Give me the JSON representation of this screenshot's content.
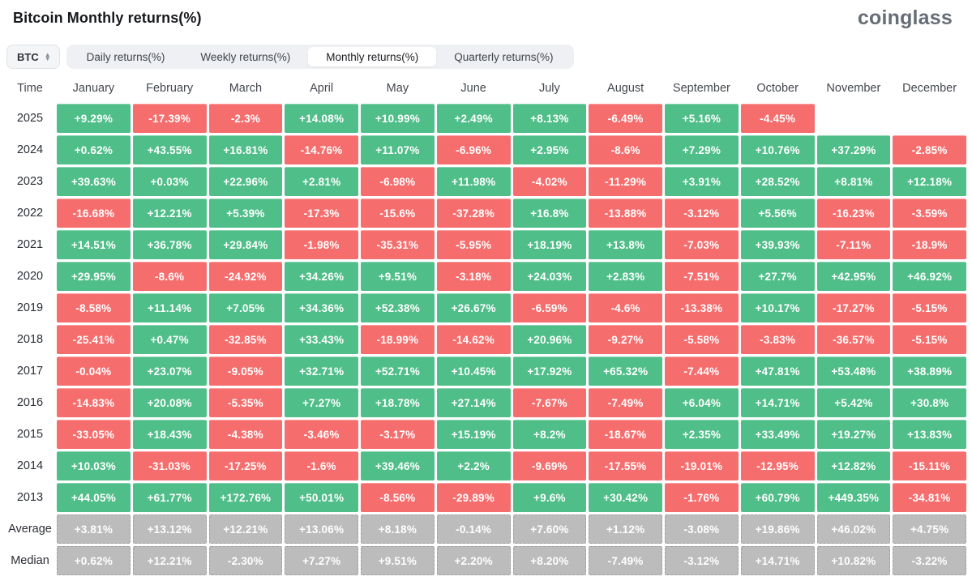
{
  "header": {
    "title": "Bitcoin Monthly returns(%)",
    "logo": "coinglass"
  },
  "toolbar": {
    "symbol_select": {
      "value": "BTC"
    },
    "tabs": [
      {
        "label": "Daily returns(%)",
        "active": false
      },
      {
        "label": "Weekly returns(%)",
        "active": false
      },
      {
        "label": "Monthly returns(%)",
        "active": true
      },
      {
        "label": "Quarterly returns(%)",
        "active": false
      }
    ]
  },
  "colors": {
    "positive": "#4fbe89",
    "negative": "#f66d6d",
    "aggregate": "#bcbcbc"
  },
  "chart_data": {
    "type": "heatmap",
    "title": "Bitcoin Monthly returns(%)",
    "time_header": "Time",
    "months": [
      "January",
      "February",
      "March",
      "April",
      "May",
      "June",
      "July",
      "August",
      "September",
      "October",
      "November",
      "December"
    ],
    "rows": [
      {
        "label": "2025",
        "type": "year",
        "values": [
          "+9.29%",
          "-17.39%",
          "-2.3%",
          "+14.08%",
          "+10.99%",
          "+2.49%",
          "+8.13%",
          "-6.49%",
          "+5.16%",
          "-4.45%",
          null,
          null
        ]
      },
      {
        "label": "2024",
        "type": "year",
        "values": [
          "+0.62%",
          "+43.55%",
          "+16.81%",
          "-14.76%",
          "+11.07%",
          "-6.96%",
          "+2.95%",
          "-8.6%",
          "+7.29%",
          "+10.76%",
          "+37.29%",
          "-2.85%"
        ]
      },
      {
        "label": "2023",
        "type": "year",
        "values": [
          "+39.63%",
          "+0.03%",
          "+22.96%",
          "+2.81%",
          "-6.98%",
          "+11.98%",
          "-4.02%",
          "-11.29%",
          "+3.91%",
          "+28.52%",
          "+8.81%",
          "+12.18%"
        ]
      },
      {
        "label": "2022",
        "type": "year",
        "values": [
          "-16.68%",
          "+12.21%",
          "+5.39%",
          "-17.3%",
          "-15.6%",
          "-37.28%",
          "+16.8%",
          "-13.88%",
          "-3.12%",
          "+5.56%",
          "-16.23%",
          "-3.59%"
        ]
      },
      {
        "label": "2021",
        "type": "year",
        "values": [
          "+14.51%",
          "+36.78%",
          "+29.84%",
          "-1.98%",
          "-35.31%",
          "-5.95%",
          "+18.19%",
          "+13.8%",
          "-7.03%",
          "+39.93%",
          "-7.11%",
          "-18.9%"
        ]
      },
      {
        "label": "2020",
        "type": "year",
        "values": [
          "+29.95%",
          "-8.6%",
          "-24.92%",
          "+34.26%",
          "+9.51%",
          "-3.18%",
          "+24.03%",
          "+2.83%",
          "-7.51%",
          "+27.7%",
          "+42.95%",
          "+46.92%"
        ]
      },
      {
        "label": "2019",
        "type": "year",
        "values": [
          "-8.58%",
          "+11.14%",
          "+7.05%",
          "+34.36%",
          "+52.38%",
          "+26.67%",
          "-6.59%",
          "-4.6%",
          "-13.38%",
          "+10.17%",
          "-17.27%",
          "-5.15%"
        ]
      },
      {
        "label": "2018",
        "type": "year",
        "values": [
          "-25.41%",
          "+0.47%",
          "-32.85%",
          "+33.43%",
          "-18.99%",
          "-14.62%",
          "+20.96%",
          "-9.27%",
          "-5.58%",
          "-3.83%",
          "-36.57%",
          "-5.15%"
        ]
      },
      {
        "label": "2017",
        "type": "year",
        "values": [
          "-0.04%",
          "+23.07%",
          "-9.05%",
          "+32.71%",
          "+52.71%",
          "+10.45%",
          "+17.92%",
          "+65.32%",
          "-7.44%",
          "+47.81%",
          "+53.48%",
          "+38.89%"
        ]
      },
      {
        "label": "2016",
        "type": "year",
        "values": [
          "-14.83%",
          "+20.08%",
          "-5.35%",
          "+7.27%",
          "+18.78%",
          "+27.14%",
          "-7.67%",
          "-7.49%",
          "+6.04%",
          "+14.71%",
          "+5.42%",
          "+30.8%"
        ]
      },
      {
        "label": "2015",
        "type": "year",
        "values": [
          "-33.05%",
          "+18.43%",
          "-4.38%",
          "-3.46%",
          "-3.17%",
          "+15.19%",
          "+8.2%",
          "-18.67%",
          "+2.35%",
          "+33.49%",
          "+19.27%",
          "+13.83%"
        ]
      },
      {
        "label": "2014",
        "type": "year",
        "values": [
          "+10.03%",
          "-31.03%",
          "-17.25%",
          "-1.6%",
          "+39.46%",
          "+2.2%",
          "-9.69%",
          "-17.55%",
          "-19.01%",
          "-12.95%",
          "+12.82%",
          "-15.11%"
        ]
      },
      {
        "label": "2013",
        "type": "year",
        "values": [
          "+44.05%",
          "+61.77%",
          "+172.76%",
          "+50.01%",
          "-8.56%",
          "-29.89%",
          "+9.6%",
          "+30.42%",
          "-1.76%",
          "+60.79%",
          "+449.35%",
          "-34.81%"
        ]
      },
      {
        "label": "Average",
        "type": "aggregate",
        "values": [
          "+3.81%",
          "+13.12%",
          "+12.21%",
          "+13.06%",
          "+8.18%",
          "-0.14%",
          "+7.60%",
          "+1.12%",
          "-3.08%",
          "+19.86%",
          "+46.02%",
          "+4.75%"
        ]
      },
      {
        "label": "Median",
        "type": "aggregate",
        "values": [
          "+0.62%",
          "+12.21%",
          "-2.30%",
          "+7.27%",
          "+9.51%",
          "+2.20%",
          "+8.20%",
          "-7.49%",
          "-3.12%",
          "+14.71%",
          "+10.82%",
          "-3.22%"
        ]
      }
    ]
  }
}
